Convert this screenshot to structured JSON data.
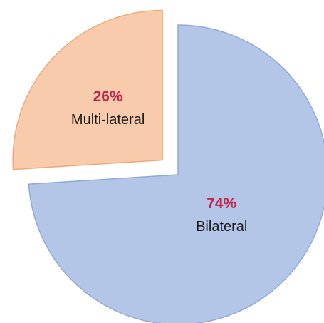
{
  "chart_data": {
    "type": "pie",
    "categories": [
      "Bilateral",
      "Multi-lateral"
    ],
    "values": [
      74,
      26
    ],
    "value_labels": [
      "74%",
      "26%"
    ],
    "colors": [
      "#b4c6e7",
      "#f8cbad"
    ],
    "explode": [
      false,
      true
    ]
  }
}
